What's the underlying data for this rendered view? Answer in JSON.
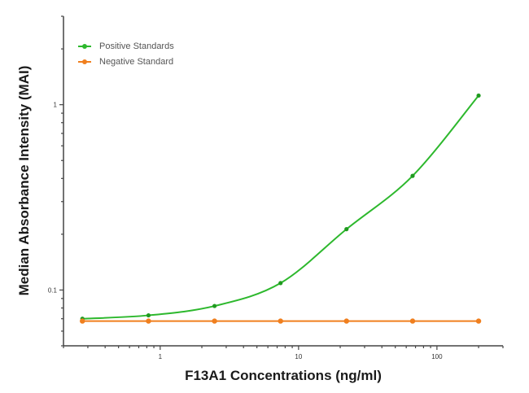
{
  "chart_data": {
    "type": "line",
    "title": "",
    "xlabel": "F13A1 Concentrations (ng/ml)",
    "ylabel": "Median Absorbance Intensity (MAI)",
    "xscale": "log",
    "yscale": "log",
    "xlim": [
      0.2,
      300
    ],
    "ylim": [
      0.05,
      3
    ],
    "x_ticks": [
      1,
      10,
      100
    ],
    "x_tick_labels": [
      "1",
      "10",
      "100"
    ],
    "y_ticks": [
      0.1,
      1
    ],
    "y_tick_labels": [
      "0.1",
      "1"
    ],
    "grid": false,
    "legend_position": "upper left",
    "x": [
      0.274,
      0.823,
      2.47,
      7.41,
      22.2,
      66.7,
      200
    ],
    "series": [
      {
        "name": "Positive Standards",
        "color": "#2db82d",
        "marker": "circle",
        "fit": "curve",
        "values": [
          0.07,
          0.073,
          0.082,
          0.109,
          0.213,
          0.413,
          1.12
        ]
      },
      {
        "name": "Negative Standard",
        "color": "#f07f1e",
        "marker": "circle",
        "fit": "line",
        "values": [
          0.068,
          0.068,
          0.068,
          0.068,
          0.068,
          0.068,
          0.068
        ]
      }
    ]
  },
  "legend": {
    "items": [
      {
        "label": "Positive Standards",
        "color": "#2db82d"
      },
      {
        "label": "Negative Standard",
        "color": "#f07f1e"
      }
    ]
  },
  "axes": {
    "xlabel": "F13A1 Concentrations (ng/ml)",
    "ylabel": "Median Absorbance Intensity (MAI)"
  }
}
